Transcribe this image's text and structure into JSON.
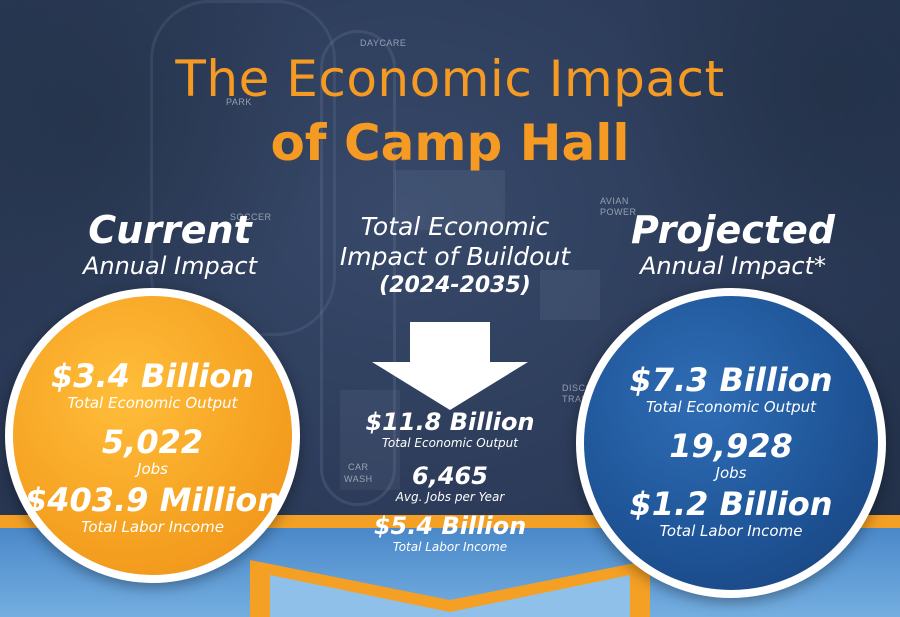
{
  "title": {
    "line1": "The Economic Impact",
    "line2": "of Camp Hall"
  },
  "background_labels": {
    "daycare": "DAYCARE",
    "park": "PARK",
    "soccer": "SOCCER",
    "avian": "AVIAN",
    "power": "POWER",
    "discovery": "DISCOVE",
    "training": "TRAINING",
    "car": "CAR",
    "wash": "WASH"
  },
  "current": {
    "heading": "Current",
    "subheading": "Annual Impact",
    "output_value": "$3.4 Billion",
    "output_label": "Total Economic Output",
    "jobs_value": "5,022",
    "jobs_label": "Jobs",
    "income_value": "$403.9 Million",
    "income_label": "Total Labor Income"
  },
  "buildout": {
    "heading_line1": "Total Economic",
    "heading_line2": "Impact of Buildout",
    "years": "(2024-2035)",
    "output_value": "$11.8 Billion",
    "output_label": "Total Economic Output",
    "jobs_value": "6,465",
    "jobs_label": "Avg. Jobs per Year",
    "income_value": "$5.4 Billion",
    "income_label": "Total Labor Income"
  },
  "projected": {
    "heading": "Projected",
    "subheading": "Annual Impact*",
    "output_value": "$7.3 Billion",
    "output_label": "Total Economic Output",
    "jobs_value": "19,928",
    "jobs_label": "Jobs",
    "income_value": "$1.2 Billion",
    "income_label": "Total Labor Income"
  },
  "colors": {
    "accent_orange": "#f59a22",
    "circle_orange": "#f6a323",
    "circle_blue": "#1f5598",
    "band_blue": "#4a88c9",
    "background_navy": "#2e3e5a"
  },
  "icons": {
    "arrow": "down-arrow-icon"
  }
}
